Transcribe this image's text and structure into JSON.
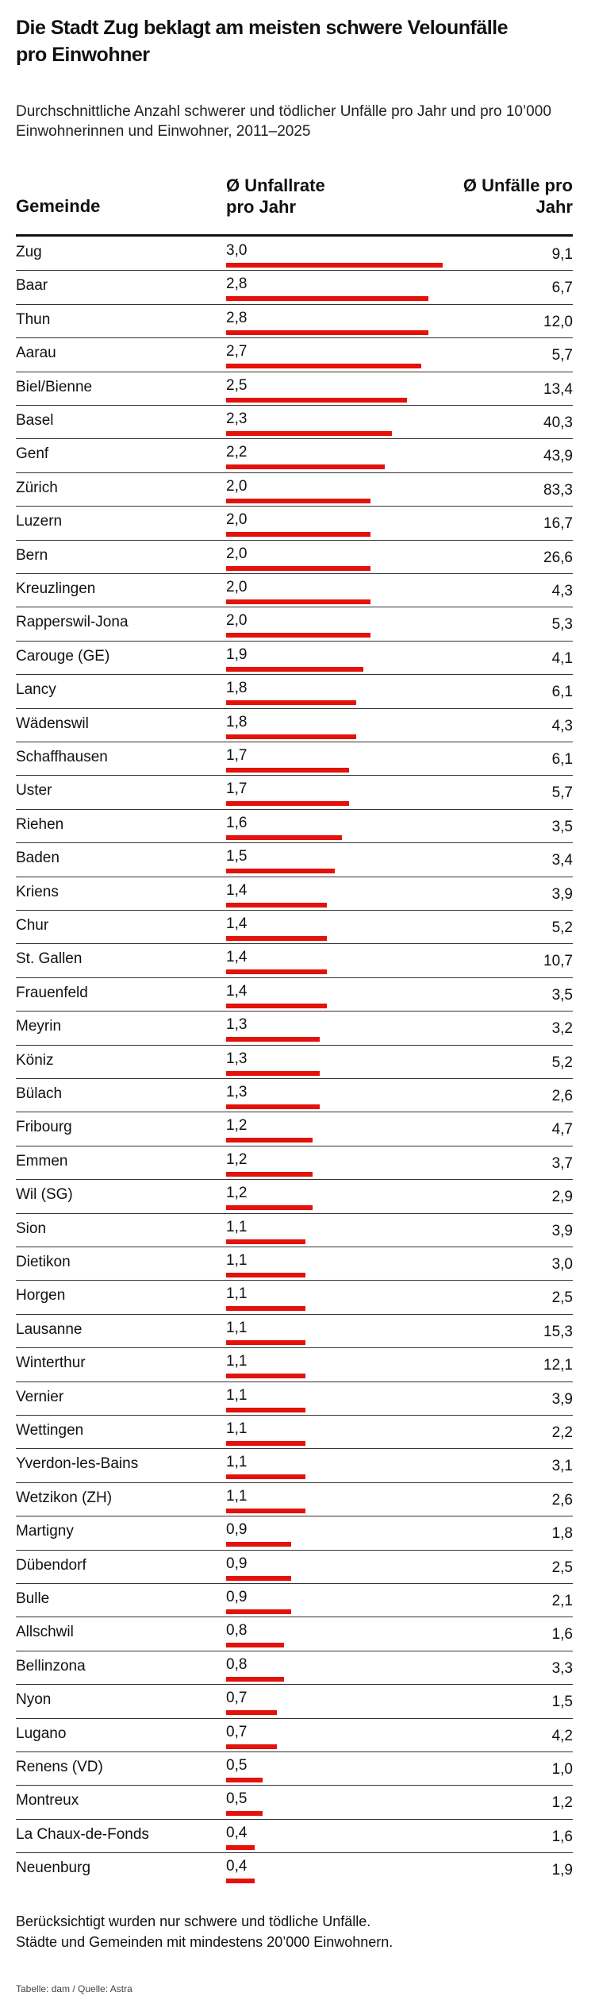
{
  "chart_data": {
    "type": "bar",
    "title": "Die Stadt Zug beklagt am meisten schwere Velounfälle pro Einwohner",
    "subtitle": "Durchschnittliche Anzahl schwerer und tödlicher Unfälle pro Jahr und pro 10’000 Einwohnerinnen und Einwohner, 2011–2025",
    "column_headers": [
      "Gemeinde",
      "Ø Unfallrate pro Jahr",
      "Ø Unfälle pro Jahr"
    ],
    "color": "#e3120b",
    "categories": [
      "Zug",
      "Baar",
      "Thun",
      "Aarau",
      "Biel/Bienne",
      "Basel",
      "Genf",
      "Zürich",
      "Luzern",
      "Bern",
      "Kreuzlingen",
      "Rapperswil-Jona",
      "Carouge (GE)",
      "Lancy",
      "Wädenswil",
      "Schaffhausen",
      "Uster",
      "Riehen",
      "Baden",
      "Kriens",
      "Chur",
      "St. Gallen",
      "Frauenfeld",
      "Meyrin",
      "Köniz",
      "Bülach",
      "Fribourg",
      "Emmen",
      "Wil (SG)",
      "Sion",
      "Dietikon",
      "Horgen",
      "Lausanne",
      "Winterthur",
      "Vernier",
      "Wettingen",
      "Yverdon-les-Bains",
      "Wetzikon (ZH)",
      "Martigny",
      "Dübendorf",
      "Bulle",
      "Allschwil",
      "Bellinzona",
      "Nyon",
      "Lugano",
      "Renens (VD)",
      "Montreux",
      "La Chaux-de-Fonds",
      "Neuenburg"
    ],
    "values": [
      3.0,
      2.8,
      2.8,
      2.7,
      2.5,
      2.3,
      2.2,
      2.0,
      2.0,
      2.0,
      2.0,
      2.0,
      1.9,
      1.8,
      1.8,
      1.7,
      1.7,
      1.6,
      1.5,
      1.4,
      1.4,
      1.4,
      1.4,
      1.3,
      1.3,
      1.3,
      1.2,
      1.2,
      1.2,
      1.1,
      1.1,
      1.1,
      1.1,
      1.1,
      1.1,
      1.1,
      1.1,
      1.1,
      0.9,
      0.9,
      0.9,
      0.8,
      0.8,
      0.7,
      0.7,
      0.5,
      0.5,
      0.4,
      0.4
    ],
    "value_labels": [
      "3,0",
      "2,8",
      "2,8",
      "2,7",
      "2,5",
      "2,3",
      "2,2",
      "2,0",
      "2,0",
      "2,0",
      "2,0",
      "2,0",
      "1,9",
      "1,8",
      "1,8",
      "1,7",
      "1,7",
      "1,6",
      "1,5",
      "1,4",
      "1,4",
      "1,4",
      "1,4",
      "1,3",
      "1,3",
      "1,3",
      "1,2",
      "1,2",
      "1,2",
      "1,1",
      "1,1",
      "1,1",
      "1,1",
      "1,1",
      "1,1",
      "1,1",
      "1,1",
      "1,1",
      "0,9",
      "0,9",
      "0,9",
      "0,8",
      "0,8",
      "0,7",
      "0,7",
      "0,5",
      "0,5",
      "0,4",
      "0,4"
    ],
    "accidents": [
      "9,1",
      "6,7",
      "12,0",
      "5,7",
      "13,4",
      "40,3",
      "43,9",
      "83,3",
      "16,7",
      "26,6",
      "4,3",
      "5,3",
      "4,1",
      "6,1",
      "4,3",
      "6,1",
      "5,7",
      "3,5",
      "3,4",
      "3,9",
      "5,2",
      "10,7",
      "3,5",
      "3,2",
      "5,2",
      "2,6",
      "4,7",
      "3,7",
      "2,9",
      "3,9",
      "3,0",
      "2,5",
      "15,3",
      "12,1",
      "3,9",
      "2,2",
      "3,1",
      "2,6",
      "1,8",
      "2,5",
      "2,1",
      "1,6",
      "3,3",
      "1,5",
      "4,2",
      "1,0",
      "1,2",
      "1,6",
      "1,9"
    ],
    "notes": [
      "Berücksichtigt wurden nur schwere und tödliche Unfälle.",
      "Städte und Gemeinden mit mindestens 20’000 Einwohnern."
    ],
    "source": "Tabelle: dam / Quelle: Astra"
  }
}
